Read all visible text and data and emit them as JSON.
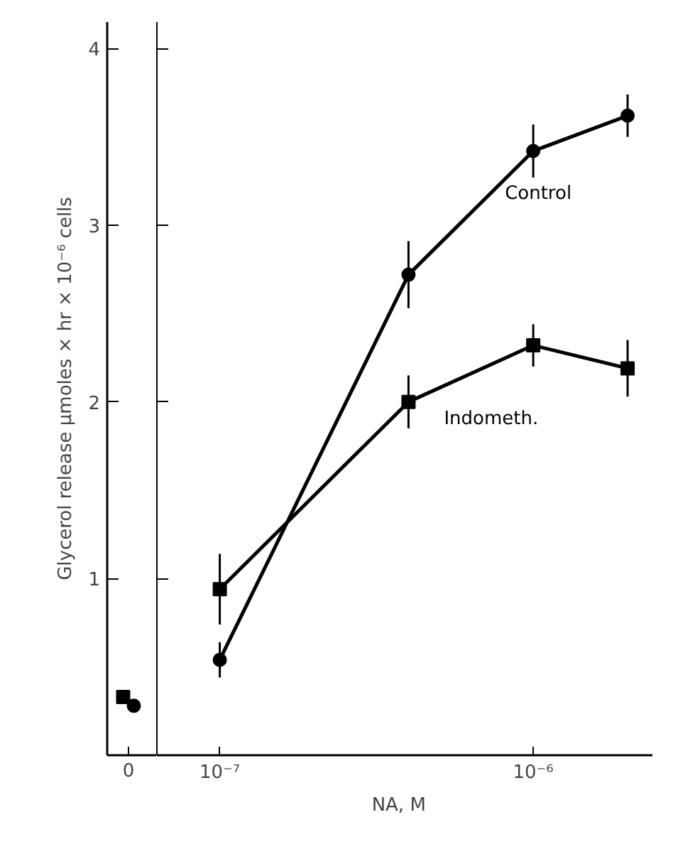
{
  "chart_data": [
    {
      "type": "scatter",
      "categories": [
        "0"
      ],
      "ylabel": "Glycerol release μmoles × hr × 10⁻⁶ cells",
      "ylim": [
        0,
        4.15
      ],
      "yticks": [
        1,
        2,
        3,
        4
      ],
      "series": [
        {
          "color": "#000000",
          "marker": "square",
          "values": [
            0.33
          ]
        },
        {
          "color": "#000000",
          "marker": "circle",
          "values": [
            0.28
          ]
        }
      ]
    },
    {
      "type": "line",
      "xlabel": "NA,   M",
      "log": "x",
      "xlim": [
        6.3e-08,
        2.4e-06
      ],
      "xticks": [
        {
          "value": 1e-07,
          "label": "10⁻⁷"
        },
        {
          "value": 1e-06,
          "label": "10⁻⁶"
        }
      ],
      "ylim": [
        0,
        4.15
      ],
      "yticks": [
        1,
        2,
        3,
        4
      ],
      "tick_labels": "x",
      "x": [
        1e-07,
        4e-07,
        1e-06,
        2e-06
      ],
      "series": [
        {
          "name": "Control",
          "color": "#000000",
          "marker": "circle",
          "values": [
            0.54,
            2.72,
            3.42,
            3.62
          ],
          "errors": [
            0.1,
            0.19,
            0.15,
            0.12
          ]
        },
        {
          "name": "Indometh.",
          "color": "#000000",
          "marker": "square",
          "values": [
            0.94,
            2.0,
            2.32,
            2.19
          ],
          "errors": [
            0.2,
            0.15,
            0.12,
            0.16
          ]
        }
      ]
    }
  ]
}
